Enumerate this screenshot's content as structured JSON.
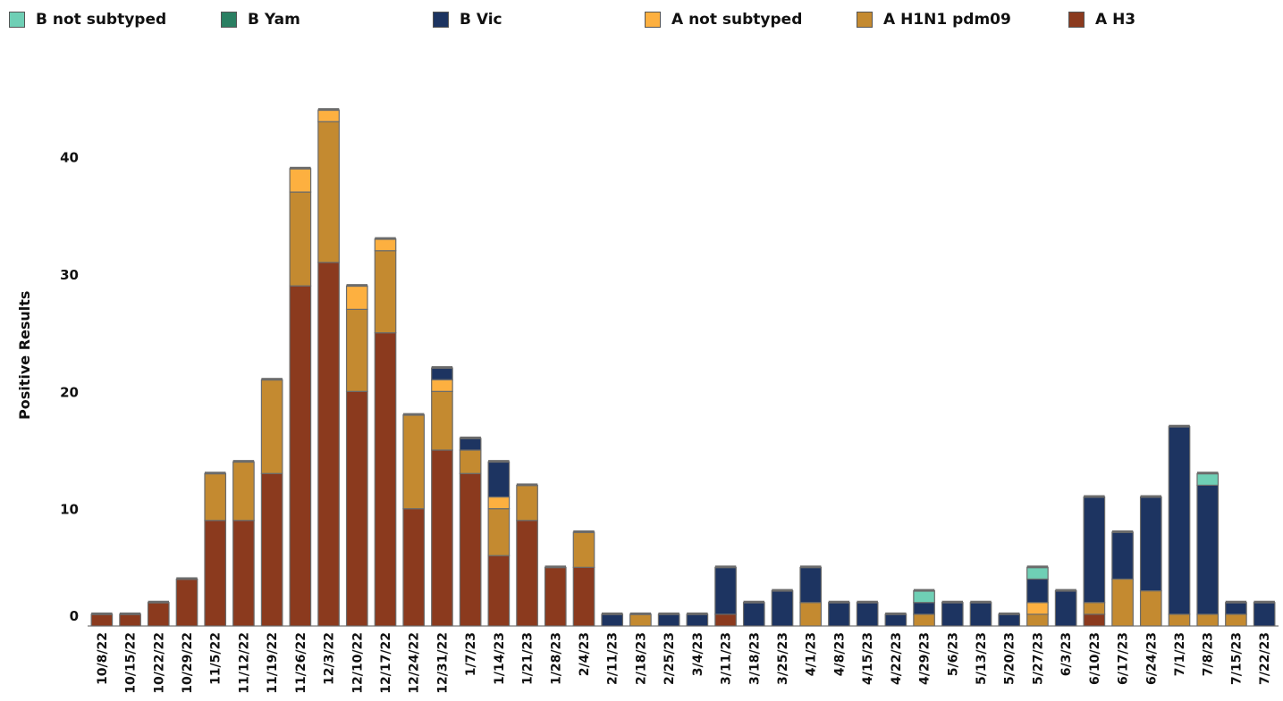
{
  "chart_data": {
    "type": "bar",
    "stacked": true,
    "ylabel": "Positive Results",
    "xlabel": "",
    "ylim": [
      0,
      45
    ],
    "yticks": [
      0,
      10,
      20,
      30,
      40
    ],
    "grid": false,
    "legend_position": "top",
    "categories": [
      "10/8/22",
      "10/15/22",
      "10/22/22",
      "10/29/22",
      "11/5/22",
      "11/12/22",
      "11/19/22",
      "11/26/22",
      "12/3/22",
      "12/10/22",
      "12/17/22",
      "12/24/22",
      "12/31/22",
      "1/7/23",
      "1/14/23",
      "1/21/23",
      "1/28/23",
      "2/4/23",
      "2/11/23",
      "2/18/23",
      "2/25/23",
      "3/4/23",
      "3/11/23",
      "3/18/23",
      "3/25/23",
      "4/1/23",
      "4/8/23",
      "4/15/23",
      "4/22/23",
      "4/29/23",
      "5/6/23",
      "5/13/23",
      "5/20/23",
      "5/27/23",
      "6/3/23",
      "6/10/23",
      "6/17/23",
      "6/24/23",
      "7/1/23",
      "7/8/23",
      "7/15/23",
      "7/22/23"
    ],
    "series": [
      {
        "name": "A H3",
        "color": "#8B3A1E",
        "values": [
          1,
          1,
          2,
          4,
          9,
          9,
          13,
          29,
          31,
          20,
          25,
          10,
          15,
          13,
          6,
          9,
          5,
          5,
          0,
          0,
          0,
          0,
          1,
          0,
          0,
          0,
          0,
          0,
          0,
          0,
          0,
          0,
          0,
          0,
          0,
          1,
          0,
          0,
          0,
          0,
          0,
          0
        ]
      },
      {
        "name": "A H1N1 pdm09",
        "color": "#C48A30",
        "values": [
          0,
          0,
          0,
          0,
          4,
          5,
          8,
          8,
          12,
          7,
          7,
          8,
          5,
          2,
          4,
          3,
          0,
          3,
          0,
          1,
          0,
          0,
          0,
          0,
          0,
          2,
          0,
          0,
          0,
          1,
          0,
          0,
          0,
          1,
          0,
          1,
          4,
          3,
          1,
          1,
          1,
          0
        ]
      },
      {
        "name": "A not subtyped",
        "color": "#FDB040",
        "values": [
          0,
          0,
          0,
          0,
          0,
          0,
          0,
          2,
          1,
          2,
          1,
          0,
          1,
          0,
          1,
          0,
          0,
          0,
          0,
          0,
          0,
          0,
          0,
          0,
          0,
          0,
          0,
          0,
          0,
          0,
          0,
          0,
          0,
          1,
          0,
          0,
          0,
          0,
          0,
          0,
          0,
          0
        ]
      },
      {
        "name": "B Vic",
        "color": "#1D3461",
        "values": [
          0,
          0,
          0,
          0,
          0,
          0,
          0,
          0,
          0,
          0,
          0,
          0,
          1,
          1,
          3,
          0,
          0,
          0,
          1,
          0,
          1,
          1,
          4,
          2,
          3,
          3,
          2,
          2,
          1,
          1,
          2,
          2,
          1,
          2,
          3,
          9,
          4,
          8,
          16,
          11,
          1,
          2
        ]
      },
      {
        "name": "B Yam",
        "color": "#2A7F62",
        "values": [
          0,
          0,
          0,
          0,
          0,
          0,
          0,
          0,
          0,
          0,
          0,
          0,
          0,
          0,
          0,
          0,
          0,
          0,
          0,
          0,
          0,
          0,
          0,
          0,
          0,
          0,
          0,
          0,
          0,
          0,
          0,
          0,
          0,
          0,
          0,
          0,
          0,
          0,
          0,
          0,
          0,
          0
        ]
      },
      {
        "name": "B not subtyped",
        "color": "#6FCFB5",
        "values": [
          0,
          0,
          0,
          0,
          0,
          0,
          0,
          0,
          0,
          0,
          0,
          0,
          0,
          0,
          0,
          0,
          0,
          0,
          0,
          0,
          0,
          0,
          0,
          0,
          0,
          0,
          0,
          0,
          0,
          1,
          0,
          0,
          0,
          1,
          0,
          0,
          0,
          0,
          0,
          1,
          0,
          0
        ]
      }
    ]
  },
  "legend": [
    {
      "label": "B not subtyped",
      "color": "#6FCFB5"
    },
    {
      "label": "B Yam",
      "color": "#2A7F62"
    },
    {
      "label": "B Vic",
      "color": "#1D3461"
    },
    {
      "label": "A not subtyped",
      "color": "#FDB040"
    },
    {
      "label": "A H1N1 pdm09",
      "color": "#C48A30"
    },
    {
      "label": "A H3",
      "color": "#8B3A1E"
    }
  ]
}
